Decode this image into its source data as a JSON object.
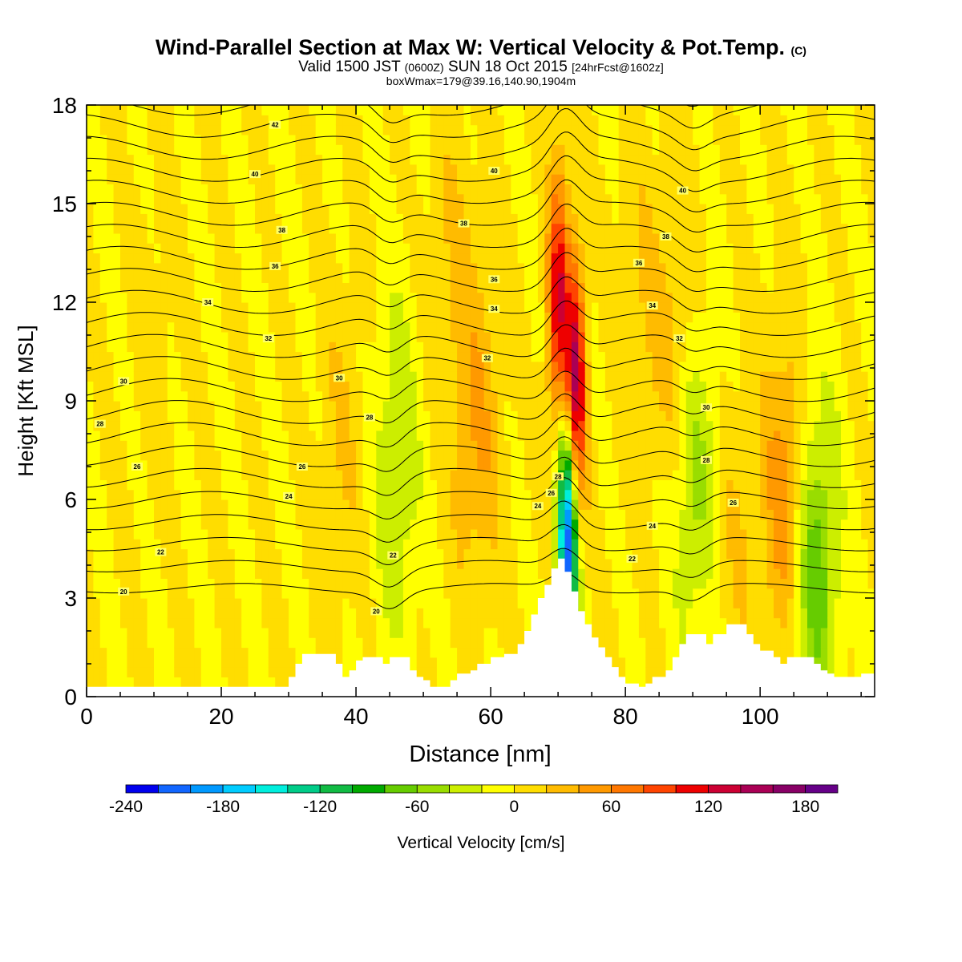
{
  "header": {
    "title": "Wind-Parallel Section at Max W: Vertical Velocity & Pot.Temp.",
    "title_mark": "(C)",
    "valid_a": "Valid 1500 JST",
    "valid_z": "(0600Z)",
    "valid_b": "SUN 18 Oct 2015",
    "valid_fcst": "[24hrFcst@1602z]",
    "box_info": "boxWmax=179@39.16,140.90,1904m"
  },
  "chart_data": {
    "type": "heatmap",
    "xlabel": "Distance [nm]",
    "ylabel": "Height [Kft MSL]",
    "xlim": [
      0,
      117
    ],
    "ylim": [
      0,
      18
    ],
    "x_ticks": [
      "0",
      "20",
      "40",
      "60",
      "80",
      "100"
    ],
    "y_ticks": [
      "0",
      "3",
      "6",
      "9",
      "12",
      "15",
      "18"
    ],
    "colorbar": {
      "label": "Vertical Velocity [cm/s]",
      "min": -240,
      "max": 200,
      "step": 20,
      "tick_labels": [
        "-240",
        "-180",
        "-120",
        "-60",
        "0",
        "60",
        "120",
        "180"
      ],
      "colors": [
        "#0000ee",
        "#1166ff",
        "#0099ff",
        "#00ccff",
        "#00eedd",
        "#00cc88",
        "#11bb44",
        "#00aa00",
        "#66cc00",
        "#99dd00",
        "#ccee00",
        "#ffff00",
        "#ffdd00",
        "#ffbb00",
        "#ff9900",
        "#ff7700",
        "#ff4400",
        "#ee0000",
        "#cc0033",
        "#aa0055",
        "#880066",
        "#660088"
      ]
    },
    "terrain": [
      [
        0,
        0.3
      ],
      [
        29,
        0.3
      ],
      [
        30,
        0.6
      ],
      [
        31,
        1.0
      ],
      [
        32,
        1.3
      ],
      [
        36,
        1.3
      ],
      [
        37,
        1.0
      ],
      [
        38,
        0.6
      ],
      [
        39,
        0.8
      ],
      [
        40,
        1.1
      ],
      [
        41,
        1.2
      ],
      [
        43,
        1.2
      ],
      [
        44,
        1.0
      ],
      [
        45,
        1.2
      ],
      [
        47,
        1.2
      ],
      [
        48,
        0.8
      ],
      [
        49,
        0.6
      ],
      [
        50,
        0.5
      ],
      [
        51,
        0.3
      ],
      [
        53,
        0.3
      ],
      [
        54,
        0.5
      ],
      [
        55,
        0.7
      ],
      [
        57,
        0.8
      ],
      [
        58,
        1.0
      ],
      [
        60,
        1.2
      ],
      [
        62,
        1.3
      ],
      [
        64,
        1.6
      ],
      [
        65,
        2.0
      ],
      [
        66,
        2.5
      ],
      [
        67,
        3.0
      ],
      [
        68,
        3.4
      ],
      [
        69,
        3.9
      ],
      [
        70,
        4.2
      ],
      [
        71,
        3.8
      ],
      [
        72,
        3.2
      ],
      [
        73,
        2.6
      ],
      [
        74,
        2.2
      ],
      [
        75,
        1.8
      ],
      [
        76,
        1.5
      ],
      [
        77,
        1.2
      ],
      [
        78,
        0.9
      ],
      [
        79,
        0.6
      ],
      [
        80,
        0.4
      ],
      [
        82,
        0.3
      ],
      [
        83,
        0.4
      ],
      [
        84,
        0.6
      ],
      [
        86,
        0.8
      ],
      [
        87,
        1.2
      ],
      [
        88,
        1.6
      ],
      [
        89,
        1.9
      ],
      [
        91,
        1.9
      ],
      [
        92,
        1.6
      ],
      [
        93,
        1.9
      ],
      [
        95,
        2.2
      ],
      [
        97,
        2.2
      ],
      [
        98,
        1.9
      ],
      [
        99,
        1.6
      ],
      [
        100,
        1.4
      ],
      [
        102,
        1.2
      ],
      [
        103,
        1.0
      ],
      [
        104,
        1.2
      ],
      [
        107,
        1.2
      ],
      [
        108,
        1.0
      ],
      [
        109,
        0.8
      ],
      [
        110,
        0.7
      ],
      [
        111,
        0.6
      ],
      [
        113,
        0.6
      ],
      [
        115,
        0.7
      ],
      [
        117,
        0.8
      ]
    ],
    "series": [
      {
        "name": "Vertical Velocity",
        "x": [
          72.5,
          71.5,
          70.0,
          90.0,
          108.0,
          46.0,
          58.0,
          88.0,
          104.0,
          38.0,
          54.0,
          96.0,
          82.0,
          10.0
        ],
        "y": [
          9.0,
          5.0,
          12.0,
          7.0,
          4.0,
          7.0,
          8.0,
          10.0,
          6.0,
          8.0,
          13.0,
          5.0,
          12.0,
          11.0
        ],
        "z": [
          180,
          -240,
          120,
          -60,
          -80,
          -40,
          40,
          40,
          60,
          20,
          20,
          20,
          20,
          10
        ]
      },
      {
        "name": "Potential Temperature",
        "levels": [
          20,
          21,
          22,
          23,
          24,
          25,
          26,
          27,
          28,
          29,
          30,
          31,
          32,
          33,
          34,
          35,
          36,
          37,
          38,
          39,
          40,
          41,
          42,
          43
        ],
        "contour_labels": [
          {
            "x": 5.5,
            "y": 3.2,
            "text": "20"
          },
          {
            "x": 43.0,
            "y": 2.6,
            "text": "20"
          },
          {
            "x": 11.0,
            "y": 4.4,
            "text": "22"
          },
          {
            "x": 45.5,
            "y": 4.3,
            "text": "22"
          },
          {
            "x": 81.0,
            "y": 4.2,
            "text": "22"
          },
          {
            "x": 30.0,
            "y": 6.1,
            "text": "24"
          },
          {
            "x": 67.0,
            "y": 5.8,
            "text": "24"
          },
          {
            "x": 84.0,
            "y": 5.2,
            "text": "24"
          },
          {
            "x": 7.5,
            "y": 7.0,
            "text": "26"
          },
          {
            "x": 32.0,
            "y": 7.0,
            "text": "26"
          },
          {
            "x": 69.0,
            "y": 6.2,
            "text": "26"
          },
          {
            "x": 96.0,
            "y": 5.9,
            "text": "26"
          },
          {
            "x": 2.0,
            "y": 8.3,
            "text": "28"
          },
          {
            "x": 42.0,
            "y": 8.5,
            "text": "28"
          },
          {
            "x": 70.0,
            "y": 6.7,
            "text": "28"
          },
          {
            "x": 92.0,
            "y": 7.2,
            "text": "28"
          },
          {
            "x": 5.5,
            "y": 9.6,
            "text": "30"
          },
          {
            "x": 37.5,
            "y": 9.7,
            "text": "30"
          },
          {
            "x": 92.0,
            "y": 8.8,
            "text": "30"
          },
          {
            "x": 27.0,
            "y": 10.9,
            "text": "32"
          },
          {
            "x": 59.5,
            "y": 10.3,
            "text": "32"
          },
          {
            "x": 88.0,
            "y": 10.9,
            "text": "32"
          },
          {
            "x": 18.0,
            "y": 12.0,
            "text": "34"
          },
          {
            "x": 60.5,
            "y": 11.8,
            "text": "34"
          },
          {
            "x": 84.0,
            "y": 11.9,
            "text": "34"
          },
          {
            "x": 28.0,
            "y": 13.1,
            "text": "36"
          },
          {
            "x": 60.5,
            "y": 12.7,
            "text": "36"
          },
          {
            "x": 82.0,
            "y": 13.2,
            "text": "36"
          },
          {
            "x": 29.0,
            "y": 14.2,
            "text": "38"
          },
          {
            "x": 56.0,
            "y": 14.4,
            "text": "38"
          },
          {
            "x": 86.0,
            "y": 14.0,
            "text": "38"
          },
          {
            "x": 25.0,
            "y": 15.9,
            "text": "40"
          },
          {
            "x": 60.5,
            "y": 16.0,
            "text": "40"
          },
          {
            "x": 88.5,
            "y": 15.4,
            "text": "40"
          },
          {
            "x": 28.0,
            "y": 17.4,
            "text": "42"
          }
        ]
      }
    ]
  }
}
